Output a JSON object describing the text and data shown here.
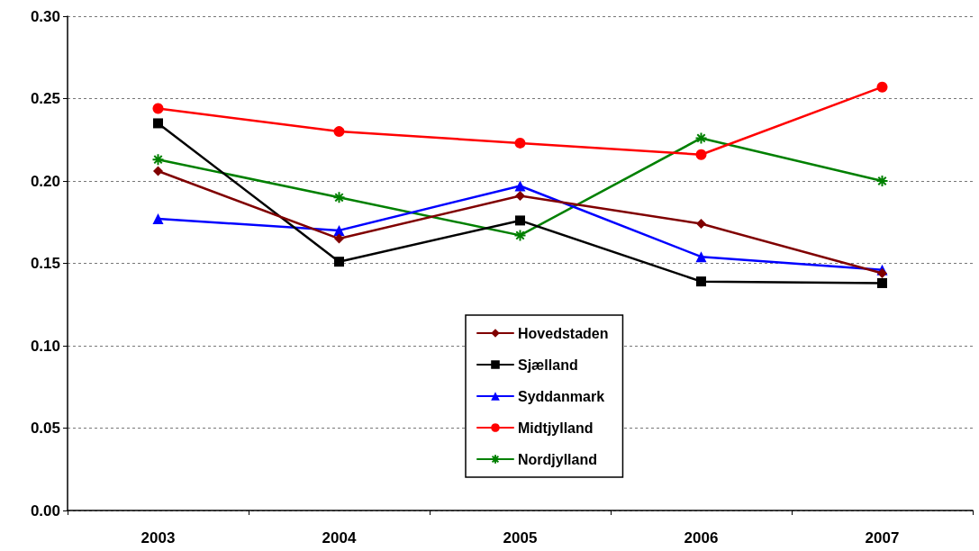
{
  "chart_data": {
    "type": "line",
    "categories": [
      "2003",
      "2004",
      "2005",
      "2006",
      "2007"
    ],
    "series": [
      {
        "name": "Hovedstaden",
        "color": "#800000",
        "marker": "diamond",
        "values": [
          0.206,
          0.165,
          0.191,
          0.174,
          0.144
        ]
      },
      {
        "name": "Sjælland",
        "color": "#000000",
        "marker": "square",
        "values": [
          0.235,
          0.151,
          0.176,
          0.139,
          0.138
        ]
      },
      {
        "name": "Syddanmark",
        "color": "#0000ff",
        "marker": "triangle",
        "values": [
          0.177,
          0.17,
          0.197,
          0.154,
          0.146
        ]
      },
      {
        "name": "Midtjylland",
        "color": "#ff0000",
        "marker": "circle",
        "values": [
          0.244,
          0.23,
          0.223,
          0.216,
          0.257
        ]
      },
      {
        "name": "Nordjylland",
        "color": "#008000",
        "marker": "cross",
        "values": [
          0.213,
          0.19,
          0.167,
          0.226,
          0.2
        ]
      }
    ],
    "ylim": [
      0,
      0.3
    ],
    "yticks": [
      {
        "value": 0,
        "label": "0.00"
      },
      0.05,
      {
        "value": 0.1,
        "label": "0.10"
      },
      0.15,
      {
        "value": 0.2,
        "label": "0.20"
      },
      0.25,
      {
        "value": 0.3,
        "label": "0.30"
      }
    ],
    "grid": "y",
    "legend": "bottom",
    "line_style": "solid"
  }
}
